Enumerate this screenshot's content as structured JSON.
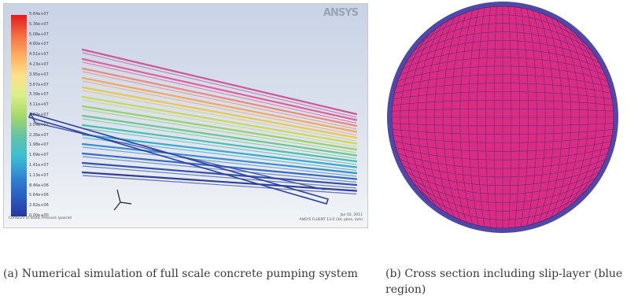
{
  "panel_a": {
    "logo_text": "ANSYS",
    "colorbar_labels": [
      "5.64e+07",
      "5.36e+07",
      "5.08e+07",
      "4.80e+07",
      "4.51e+07",
      "4.23e+07",
      "3.95e+07",
      "3.67e+07",
      "3.39e+07",
      "3.11e+07",
      "2.82e+07",
      "2.54e+07",
      "2.26e+07",
      "1.98e+07",
      "1.69e+07",
      "1.41e+07",
      "1.13e+07",
      "8.46e+06",
      "5.64e+06",
      "2.82e+06",
      "0.00e+00"
    ],
    "footer_left": "Contours of Static Pressure (pascal)",
    "footer_right_line1": "Jan 02, 2011",
    "footer_right_line2": "ANSYS FLUENT 13.0 (3d, pbns, lam)",
    "axis_triad_labels": [
      "Y",
      "X",
      "Z"
    ]
  },
  "captions": {
    "a": "(a)  Numerical simulation of full scale concrete pumping system",
    "b": "(b)  Cross section including slip-layer (blue region)"
  },
  "colors": {
    "mesh_fill": "#d92c82",
    "mesh_line": "#4a2a7a",
    "slip_layer": "#5048a8"
  }
}
